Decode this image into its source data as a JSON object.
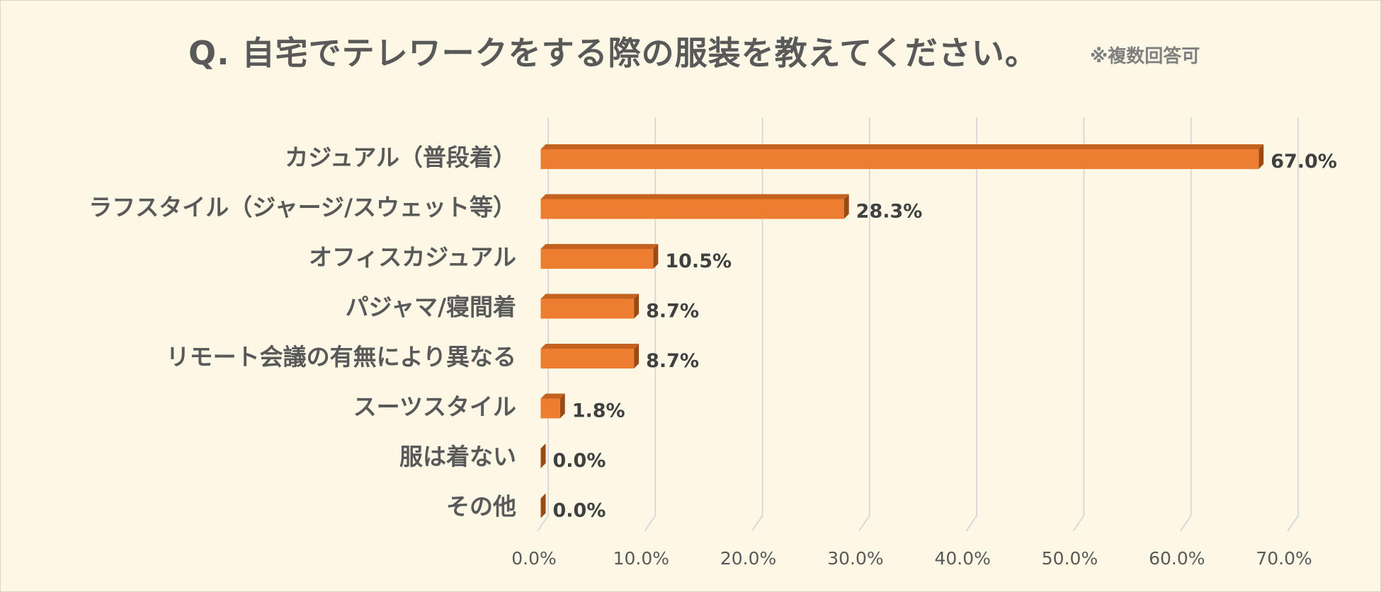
{
  "chart_data": {
    "type": "bar",
    "orientation": "horizontal",
    "title": "Q. 自宅でテレワークをする際の服装を教えてください。",
    "note": "※複数回答可",
    "categories": [
      "カジュアル（普段着）",
      "ラフスタイル（ジャージ/スウェット等）",
      "オフィスカジュアル",
      "パジャマ/寝間着",
      "リモート会議の有無により異なる",
      "スーツスタイル",
      "服は着ない",
      "その他"
    ],
    "values": [
      67.0,
      28.3,
      10.5,
      8.7,
      8.7,
      1.8,
      0.0,
      0.0
    ],
    "value_labels": [
      "67.0%",
      "28.3%",
      "10.5%",
      "8.7%",
      "8.7%",
      "1.8%",
      "0.0%",
      "0.0%"
    ],
    "xlim": [
      0,
      70
    ],
    "ticks": [
      0,
      10,
      20,
      30,
      40,
      50,
      60,
      70
    ],
    "tick_labels": [
      "0.0%",
      "10.0%",
      "20.0%",
      "30.0%",
      "40.0%",
      "50.0%",
      "60.0%",
      "70.0%"
    ],
    "grid": true,
    "colors": {
      "bar_front": "#ed7d31",
      "bar_top": "#c4621f",
      "bar_side": "#9c4a14",
      "grid": "#d9d9d9",
      "background": "#fdf8e6"
    }
  }
}
